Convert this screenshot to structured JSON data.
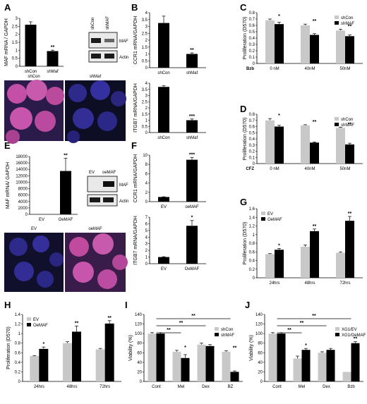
{
  "colors": {
    "dark": "#000000",
    "light": "#c8c8c8",
    "axis": "#000000",
    "micro_blue": "#23207a",
    "micro_magenta": "#c04a9e"
  },
  "panel_letters": [
    "A",
    "B",
    "C",
    "D",
    "E",
    "F",
    "G",
    "H",
    "I",
    "J"
  ],
  "blots": {
    "A": {
      "lanes": [
        "shCon",
        "shMAF"
      ],
      "bands": [
        "MAF",
        "Actin"
      ]
    },
    "E": {
      "lanes": [
        "EV",
        "oeMAF"
      ],
      "bands": [
        "MAF",
        "Actin"
      ]
    }
  },
  "micrographs": {
    "A": [
      "shCon",
      "shMaf"
    ],
    "E": [
      "EV",
      "oeMAF"
    ]
  },
  "chart_data": [
    {
      "id": "A-bar",
      "type": "bar",
      "categories": [
        "shCon",
        "shMaf"
      ],
      "values": [
        2.6,
        0.95
      ],
      "errors": [
        0.18,
        0.06
      ],
      "ylabel": "MAF mRNA / GAPDH",
      "ylim": [
        0,
        3
      ],
      "yticks": [
        "0",
        "0.5",
        "1",
        "1.5",
        "2",
        "2.5",
        "3"
      ],
      "annotations": [
        "",
        "**"
      ]
    },
    {
      "id": "B-top",
      "type": "bar",
      "categories": [
        "shCon",
        "shMaf"
      ],
      "values": [
        3.25,
        1.0
      ],
      "errors": [
        0.5,
        0.08
      ],
      "ylabel": "CCR1 mRNA/GAPDH",
      "ylim": [
        0,
        4
      ],
      "yticks": [
        "0",
        "0.5",
        "1",
        "1.5",
        "2",
        "2.5",
        "3",
        "3.5",
        "4"
      ],
      "annotations": [
        "",
        "**"
      ]
    },
    {
      "id": "B-bottom",
      "type": "bar",
      "categories": [
        "shCon",
        "shMaf"
      ],
      "values": [
        3.7,
        1.0
      ],
      "errors": [
        0.1,
        0.1
      ],
      "ylabel": "ITGB7 mRNA/GAPDH",
      "ylim": [
        0,
        4
      ],
      "yticks": [
        "0",
        "0.5",
        "1",
        "1.5",
        "2",
        "2.5",
        "3",
        "3.5",
        "4"
      ],
      "annotations": [
        "",
        "***"
      ]
    },
    {
      "id": "C",
      "type": "bar",
      "xprefix": "Bzb",
      "categories": [
        "0 nM",
        "40nM",
        "50nM"
      ],
      "series": [
        {
          "name": "shCon",
          "values": [
            0.68,
            0.6,
            0.52
          ],
          "errors": [
            0.02,
            0.02,
            0.02
          ]
        },
        {
          "name": "shMAF",
          "values": [
            0.62,
            0.45,
            0.43
          ],
          "errors": [
            0.03,
            0.02,
            0.02
          ]
        }
      ],
      "ylabel": "Proliferation (D570)",
      "ylim": [
        0,
        0.8
      ],
      "yticks": [
        "0",
        "0.1",
        "0.2",
        "0.3",
        "0.4",
        "0.5",
        "0.6",
        "0.7",
        "0.8"
      ],
      "annotations": [
        "*",
        "**",
        "**"
      ],
      "legend": "top-right"
    },
    {
      "id": "D",
      "type": "bar",
      "xprefix": "CFZ",
      "categories": [
        "0 nM",
        "40nM",
        "50nM"
      ],
      "series": [
        {
          "name": "shCon",
          "values": [
            0.7,
            0.62,
            0.58
          ],
          "errors": [
            0.03,
            0.01,
            0.01
          ]
        },
        {
          "name": "shMAF",
          "values": [
            0.6,
            0.34,
            0.31
          ],
          "errors": [
            0.02,
            0.01,
            0.02
          ]
        }
      ],
      "ylabel": "Proliferation (D570)",
      "ylim": [
        0,
        0.8
      ],
      "yticks": [
        "0",
        "0.1",
        "0.2",
        "0.3",
        "0.4",
        "0.5",
        "0.6",
        "0.7",
        "0.8"
      ],
      "annotations": [
        "*",
        "**",
        "**"
      ],
      "legend": "top-right"
    },
    {
      "id": "E-bar",
      "type": "bar",
      "categories": [
        "EV",
        "OeMAF"
      ],
      "values": [
        0,
        13500
      ],
      "errors": [
        0,
        4000
      ],
      "ylabel": "MAF mRNA/ GAPDH",
      "ylim": [
        0,
        18000
      ],
      "yticks": [
        "0",
        "2000",
        "4000",
        "6000",
        "8000",
        "10000",
        "12000",
        "14000",
        "16000",
        "18000"
      ],
      "annotations": [
        "",
        "**"
      ]
    },
    {
      "id": "F-top",
      "type": "bar",
      "categories": [
        "EV",
        "oeMAF"
      ],
      "values": [
        1.0,
        9.0
      ],
      "errors": [
        0.05,
        0.5
      ],
      "ylabel": "CCR1 mRNA/GAPDH",
      "ylim": [
        0,
        10
      ],
      "yticks": [
        "0",
        "2",
        "4",
        "6",
        "8",
        "10"
      ],
      "annotations": [
        "",
        "***"
      ]
    },
    {
      "id": "F-bottom",
      "type": "bar",
      "categories": [
        "EV",
        "OeMAF"
      ],
      "values": [
        1.0,
        5.7
      ],
      "errors": [
        0.05,
        0.8
      ],
      "ylabel": "ITGB7 mRNA/GAPDH",
      "ylim": [
        0,
        7
      ],
      "yticks": [
        "0",
        "1",
        "2",
        "3",
        "4",
        "5",
        "6",
        "7"
      ],
      "annotations": [
        "",
        "*"
      ]
    },
    {
      "id": "G",
      "type": "bar",
      "categories": [
        "24hrs",
        "48hrs",
        "72hrs"
      ],
      "series": [
        {
          "name": "EV",
          "values": [
            0.55,
            0.72,
            0.58
          ],
          "errors": [
            0.01,
            0.04,
            0.02
          ]
        },
        {
          "name": "OeMAF",
          "values": [
            0.65,
            1.08,
            1.32
          ],
          "errors": [
            0.03,
            0.05,
            0.1
          ]
        }
      ],
      "ylabel": "Proliferation (D570)",
      "ylim": [
        0,
        1.6
      ],
      "yticks": [
        "0",
        "0.2",
        "0.4",
        "0.6",
        "0.8",
        "1",
        "1.2",
        "1.4",
        "1.6"
      ],
      "annotations": [
        "*",
        "**",
        "**"
      ],
      "legend": "top-left"
    },
    {
      "id": "H",
      "type": "bar",
      "categories": [
        "24hrs",
        "48hrs",
        "72hrs"
      ],
      "series": [
        {
          "name": "EV",
          "values": [
            0.53,
            0.8,
            0.67
          ],
          "errors": [
            0.01,
            0.03,
            0.02
          ]
        },
        {
          "name": "OeMAF",
          "values": [
            0.68,
            1.04,
            1.21
          ],
          "errors": [
            0.04,
            0.12,
            0.06
          ]
        }
      ],
      "ylabel": "Proliferation (D570)",
      "ylim": [
        0,
        1.4
      ],
      "yticks": [
        "0",
        "0.2",
        "0.4",
        "0.6",
        "0.8",
        "1",
        "1.2",
        "1.4"
      ],
      "annotations": [
        "*",
        "**",
        "**"
      ],
      "legend": "top-left"
    },
    {
      "id": "I",
      "type": "bar",
      "categories": [
        "Cont",
        "Mel",
        "Dex",
        "BZ"
      ],
      "series": [
        {
          "name": "shCon",
          "values": [
            100,
            62,
            77,
            62
          ],
          "errors": [
            2,
            3,
            3,
            2
          ]
        },
        {
          "name": "shMAF",
          "values": [
            100,
            49,
            74,
            20
          ],
          "errors": [
            2,
            7,
            3,
            2
          ]
        }
      ],
      "ylabel": "Viability (%)",
      "ylim": [
        0,
        140
      ],
      "yticks": [
        "0",
        "20",
        "40",
        "60",
        "80",
        "100",
        "120",
        "140"
      ],
      "annotations": [
        "",
        "*",
        "",
        "**"
      ],
      "brackets": [
        {
          "from": 0,
          "to": 1,
          "label": "**"
        },
        {
          "from": 0,
          "to": 2,
          "label": "**"
        },
        {
          "from": 0,
          "to": 3,
          "label": "**"
        }
      ],
      "legend": "top-right"
    },
    {
      "id": "J",
      "type": "bar",
      "categories": [
        "Cont",
        "Mel",
        "Dex",
        "Bzb"
      ],
      "series": [
        {
          "name": "XG1/EV",
          "values": [
            100,
            48,
            60,
            20
          ],
          "errors": [
            2,
            5,
            2,
            0
          ]
        },
        {
          "name": "XG1/OeMAF",
          "values": [
            100,
            66,
            66,
            80
          ],
          "errors": [
            2,
            3,
            3,
            3
          ]
        }
      ],
      "ylabel": "Viability (%)",
      "ylim": [
        0,
        140
      ],
      "yticks": [
        "0",
        "20",
        "40",
        "60",
        "80",
        "100",
        "120",
        "140"
      ],
      "annotations": [
        "",
        "*",
        "",
        "**"
      ],
      "brackets": [
        {
          "from": 0,
          "to": 1,
          "label": "**"
        },
        {
          "from": 0,
          "to": 2,
          "label": "**"
        },
        {
          "from": 0,
          "to": 3,
          "label": "**"
        }
      ],
      "legend": "top-right"
    }
  ]
}
